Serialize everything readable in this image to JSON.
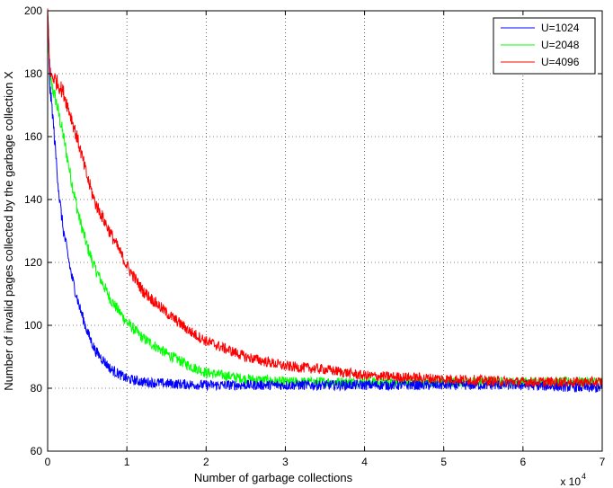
{
  "chart_data": {
    "type": "line",
    "xlabel": "Number of garbage collections",
    "ylabel": "Number of invalid pages collected by the garbage collection X",
    "x_exponent_label": "x 10",
    "x_exponent_power": "4",
    "xlim": [
      0,
      7
    ],
    "ylim": [
      60,
      200
    ],
    "xticks": [
      0,
      1,
      2,
      3,
      4,
      5,
      6,
      7
    ],
    "yticks": [
      60,
      80,
      100,
      120,
      140,
      160,
      180,
      200
    ],
    "xtick_labels": [
      "0",
      "1",
      "2",
      "3",
      "4",
      "5",
      "6",
      "7"
    ],
    "ytick_labels": [
      "60",
      "80",
      "100",
      "120",
      "140",
      "160",
      "180",
      "200"
    ],
    "grid": true,
    "legend_position": "top-right",
    "series": [
      {
        "name": "U=1024",
        "color": "#0000ff",
        "x": [
          0,
          0.03,
          0.06,
          0.1,
          0.15,
          0.2,
          0.3,
          0.4,
          0.5,
          0.6,
          0.8,
          1.0,
          1.2,
          1.5,
          2.0,
          2.5,
          3.0,
          4.0,
          5.0,
          6.0,
          7.0
        ],
        "y": [
          200,
          175,
          168,
          155,
          140,
          130,
          116,
          106,
          98,
          92,
          86,
          83,
          82,
          81.5,
          81,
          81,
          81,
          81,
          81,
          81,
          80
        ]
      },
      {
        "name": "U=2048",
        "color": "#00ff00",
        "x": [
          0,
          0.03,
          0.1,
          0.2,
          0.3,
          0.4,
          0.5,
          0.6,
          0.8,
          1.0,
          1.2,
          1.5,
          1.8,
          2.0,
          2.5,
          3.0,
          4.0,
          5.0,
          6.0,
          7.0
        ],
        "y": [
          190,
          178,
          172,
          160,
          146,
          134,
          125,
          118,
          108,
          101,
          96,
          91,
          87,
          85,
          83,
          82,
          82,
          82,
          82,
          82
        ]
      },
      {
        "name": "U=4096",
        "color": "#ff0000",
        "x": [
          0,
          0.03,
          0.1,
          0.2,
          0.3,
          0.4,
          0.5,
          0.6,
          0.8,
          1.0,
          1.2,
          1.5,
          1.8,
          2.0,
          2.5,
          3.0,
          3.5,
          4.0,
          5.0,
          6.0,
          7.0
        ],
        "y": [
          200,
          180,
          178,
          174,
          166,
          157,
          147,
          139,
          129,
          119,
          111,
          104,
          98,
          95,
          90,
          87,
          86,
          84,
          83,
          82,
          82
        ]
      }
    ]
  }
}
